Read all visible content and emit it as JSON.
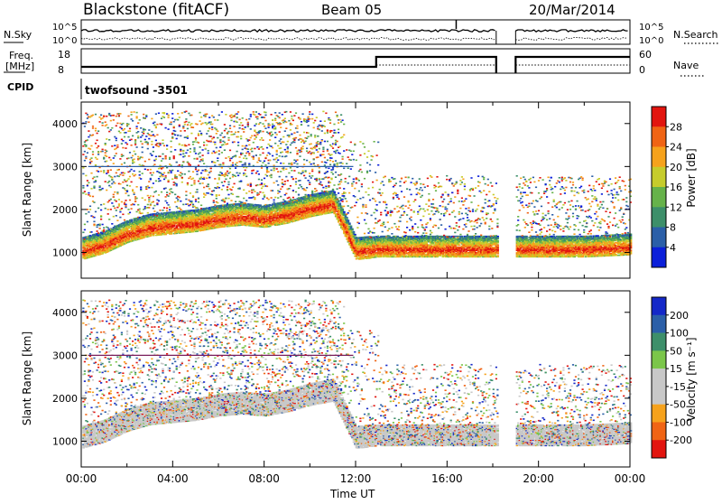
{
  "header": {
    "station": "Blackstone (fitACF)",
    "beam": "Beam 05",
    "date": "20/Mar/2014"
  },
  "top_panels": {
    "nsky_label": "N.Sky",
    "nsearch_label": "N.Search",
    "nsky_ticks": [
      "10^5",
      "10^0"
    ],
    "nsearch_ticks": [
      "10^5",
      "10^0"
    ],
    "freq_label_1": "Freq.",
    "freq_label_2": "[MHz]",
    "freq_ticks": [
      "18",
      "8"
    ],
    "nave_label": "Nave",
    "nave_ticks": [
      "60",
      "0"
    ],
    "cpid_label": "CPID",
    "cpid_value": "twofsound -3501"
  },
  "colors": {
    "power_scale": [
      "#0b1fd9",
      "#2b5fa8",
      "#3d8f6a",
      "#66b24a",
      "#c6cc2c",
      "#f6a21c",
      "#f06414",
      "#e2150f"
    ],
    "velocity_scale": [
      "#e2150f",
      "#f06414",
      "#f6a21c",
      "#c8c8c8",
      "#c8c8c8",
      "#7bc64a",
      "#3d8f6a",
      "#2b5fa8",
      "#1428c8"
    ],
    "gray": "#c8c8c8"
  },
  "chart_data": [
    {
      "type": "heatmap",
      "name": "power",
      "xlabel": "",
      "ylabel": "Slant Range [km]",
      "xlim": [
        "00:00",
        "24:00"
      ],
      "ylim": [
        400,
        4500
      ],
      "y_ticks": [
        "4000",
        "3000",
        "2000",
        "1000"
      ],
      "colorbar_label": "Power [dB]",
      "colorbar_ticks": [
        "28",
        "24",
        "20",
        "16",
        "12",
        "8",
        "4"
      ],
      "data_gap": [
        "18:10",
        "19:00"
      ],
      "main_echo_band": {
        "x_hours": [
          0,
          1,
          2,
          3,
          4,
          5,
          6,
          7,
          8,
          9,
          10,
          11,
          12,
          13,
          14,
          16,
          18,
          19,
          20,
          22,
          24
        ],
        "center_km": [
          1000,
          1150,
          1400,
          1550,
          1600,
          1650,
          1750,
          1800,
          1750,
          1850,
          2000,
          2100,
          1000,
          1050,
          1050,
          1050,
          1050,
          1050,
          1050,
          1050,
          1100
        ]
      }
    },
    {
      "type": "heatmap",
      "name": "velocity",
      "xlabel": "Time UT",
      "ylabel": "Slant Range [km]",
      "x_ticks": [
        "00:00",
        "04:00",
        "08:00",
        "12:00",
        "16:00",
        "20:00",
        "00:00"
      ],
      "ylim": [
        400,
        4500
      ],
      "y_ticks": [
        "4000",
        "3000",
        "2000",
        "1000"
      ],
      "colorbar_label": "Velocity [m s⁻¹]",
      "colorbar_ticks": [
        "200",
        "100",
        "50",
        "15",
        "-15",
        "-50",
        "-100",
        "-200"
      ]
    }
  ]
}
